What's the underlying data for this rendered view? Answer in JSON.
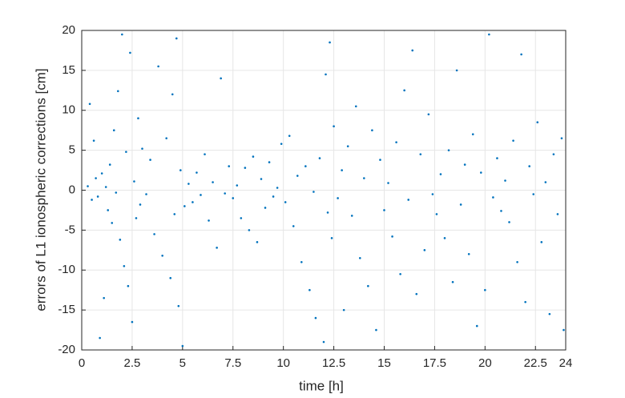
{
  "chart_data": {
    "type": "scatter",
    "xlabel": "time [h]",
    "ylabel": "errors of L1 ionospheric corrections [cm]",
    "color": "#0072bd",
    "grid": true,
    "xlim": [
      0,
      24
    ],
    "xticks": [
      0,
      2.5,
      5,
      7.5,
      10,
      12.5,
      15,
      17.5,
      20,
      22.5,
      24
    ],
    "ylim": [
      -20,
      20
    ],
    "yticks": [
      -20,
      -15,
      -10,
      -5,
      0,
      5,
      10,
      15,
      20
    ],
    "x": [
      0.3,
      0.4,
      0.5,
      0.6,
      0.7,
      0.8,
      0.9,
      1.0,
      1.1,
      1.2,
      1.3,
      1.4,
      1.5,
      1.6,
      1.7,
      1.8,
      1.9,
      2.0,
      2.1,
      2.2,
      2.3,
      2.4,
      2.5,
      2.6,
      2.7,
      2.8,
      2.9,
      3.0,
      3.2,
      3.4,
      3.6,
      3.8,
      4.0,
      4.2,
      4.4,
      4.5,
      4.6,
      4.7,
      4.8,
      4.9,
      5.0,
      5.1,
      5.3,
      5.5,
      5.7,
      5.9,
      6.1,
      6.3,
      6.5,
      6.7,
      6.9,
      7.1,
      7.3,
      7.5,
      7.7,
      7.9,
      8.1,
      8.3,
      8.5,
      8.7,
      8.9,
      9.1,
      9.3,
      9.5,
      9.7,
      9.9,
      10.1,
      10.3,
      10.5,
      10.7,
      10.9,
      11.1,
      11.3,
      11.5,
      11.6,
      11.8,
      12.0,
      12.1,
      12.2,
      12.3,
      12.4,
      12.5,
      12.7,
      12.9,
      13.0,
      13.2,
      13.4,
      13.6,
      13.8,
      14.0,
      14.2,
      14.4,
      14.6,
      14.8,
      15.0,
      15.2,
      15.4,
      15.6,
      15.8,
      16.0,
      16.2,
      16.4,
      16.6,
      16.8,
      17.0,
      17.2,
      17.4,
      17.6,
      17.8,
      18.0,
      18.2,
      18.4,
      18.6,
      18.8,
      19.0,
      19.2,
      19.4,
      19.6,
      19.8,
      20.0,
      20.2,
      20.4,
      20.6,
      20.8,
      21.0,
      21.2,
      21.4,
      21.6,
      21.8,
      22.0,
      22.2,
      22.4,
      22.6,
      22.8,
      23.0,
      23.2,
      23.4,
      23.6,
      23.8,
      23.9
    ],
    "y": [
      0.5,
      10.8,
      -1.2,
      6.2,
      1.5,
      -0.8,
      -18.5,
      2.1,
      -13.5,
      0.4,
      -2.5,
      3.2,
      -4.1,
      7.5,
      -0.3,
      12.4,
      -6.2,
      19.5,
      -9.5,
      4.8,
      -12.0,
      17.2,
      -16.5,
      1.1,
      -3.5,
      9.0,
      -1.8,
      5.2,
      -0.5,
      3.8,
      -5.5,
      15.5,
      -8.2,
      6.5,
      -11.0,
      12.0,
      -3.0,
      19.0,
      -14.5,
      2.5,
      -19.5,
      -2.0,
      0.8,
      -1.5,
      2.2,
      -0.6,
      4.5,
      -3.8,
      1.0,
      -7.2,
      14.0,
      -0.4,
      3.0,
      -1.0,
      0.6,
      -3.5,
      2.8,
      -5.0,
      4.2,
      -6.5,
      1.4,
      -2.2,
      3.5,
      -0.8,
      0.3,
      5.8,
      -1.5,
      6.8,
      -4.5,
      1.8,
      -9.0,
      3.0,
      -12.5,
      -0.2,
      -16.0,
      4.0,
      -19.0,
      14.5,
      -2.8,
      18.5,
      -6.0,
      8.0,
      -1.0,
      2.5,
      -15.0,
      5.5,
      -3.2,
      10.5,
      -8.5,
      1.5,
      -12.0,
      7.5,
      -17.5,
      3.8,
      -2.5,
      0.9,
      -5.8,
      6.0,
      -10.5,
      12.5,
      -1.2,
      17.5,
      -13.0,
      4.5,
      -7.5,
      9.5,
      -0.5,
      -3.0,
      2.0,
      -6.0,
      5.0,
      -11.5,
      15.0,
      -1.8,
      3.2,
      -8.0,
      7.0,
      -17.0,
      2.2,
      -12.5,
      19.5,
      -0.9,
      4.0,
      -2.6,
      1.2,
      -4.0,
      6.2,
      -9.0,
      17.0,
      -14.0,
      3.0,
      -0.5,
      8.5,
      -6.5,
      1.0,
      -15.5,
      4.5,
      -3.0,
      6.5,
      -17.5
    ]
  }
}
